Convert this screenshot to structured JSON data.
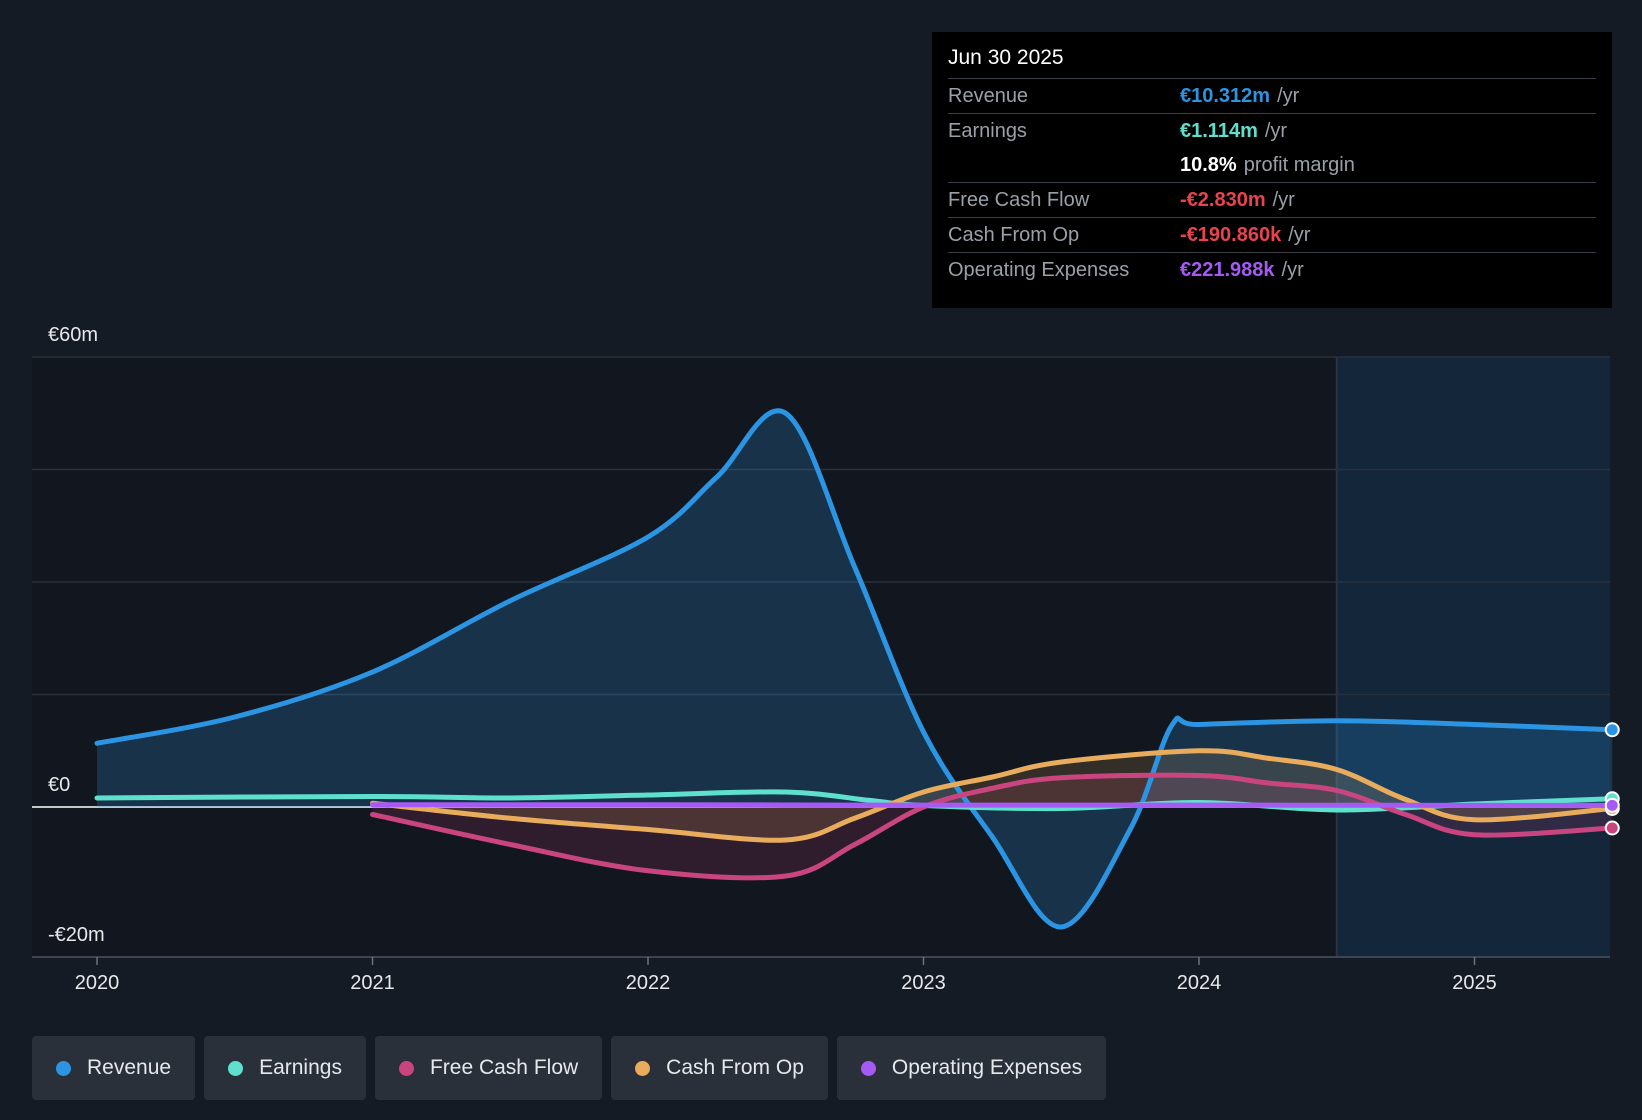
{
  "tooltip": {
    "date": "Jun 30 2025",
    "rows": [
      {
        "label": "Revenue",
        "value": "€10.312m",
        "unit": "/yr",
        "color": "#2b94e3"
      },
      {
        "label": "Earnings",
        "value": "€1.114m",
        "unit": "/yr",
        "color": "#5fe0cf"
      },
      {
        "label": "",
        "value": "10.8%",
        "unit": "profit margin",
        "color": "#ffffff"
      },
      {
        "label": "Free Cash Flow",
        "value": "-€2.830m",
        "unit": "/yr",
        "color": "#e9434e"
      },
      {
        "label": "Cash From Op",
        "value": "-€190.860k",
        "unit": "/yr",
        "color": "#e9434e"
      },
      {
        "label": "Operating Expenses",
        "value": "€221.988k",
        "unit": "/yr",
        "color": "#a55af4"
      }
    ]
  },
  "legend": [
    {
      "label": "Revenue",
      "color": "#2b94e3"
    },
    {
      "label": "Earnings",
      "color": "#5fe0cf"
    },
    {
      "label": "Free Cash Flow",
      "color": "#c8457f"
    },
    {
      "label": "Cash From Op",
      "color": "#e8ac5c"
    },
    {
      "label": "Operating Expenses",
      "color": "#a55af4"
    }
  ],
  "chart_data": {
    "type": "line",
    "ylim": [
      -20,
      60
    ],
    "y_tick_labels": [
      {
        "value": 60,
        "label": "€60m"
      },
      {
        "value": 0,
        "label": "€0"
      },
      {
        "value": -20,
        "label": "-€20m"
      }
    ],
    "x_ticks": [
      2020,
      2021,
      2022,
      2023,
      2024,
      2025
    ],
    "xlim": [
      2020,
      2025.5
    ],
    "forecast_start": 2024.5,
    "series": [
      {
        "name": "Revenue",
        "color": "#2b94e3",
        "fill": true,
        "x": [
          2020,
          2020.5,
          2021,
          2021.5,
          2022,
          2022.25,
          2022.5,
          2022.75,
          2023,
          2023.25,
          2023.5,
          2023.75,
          2023.9,
          2024,
          2024.5,
          2025,
          2025.5
        ],
        "y": [
          8.5,
          12,
          18,
          27.5,
          36,
          44,
          52.5,
          32,
          10,
          -4,
          -16,
          -3,
          10.8,
          11,
          11.5,
          11,
          10.3
        ]
      },
      {
        "name": "Earnings",
        "color": "#5fe0cf",
        "fill": false,
        "x": [
          2020,
          2021,
          2021.5,
          2022,
          2022.5,
          2022.8,
          2023,
          2023.5,
          2024,
          2024.5,
          2025,
          2025.5
        ],
        "y": [
          1.2,
          1.4,
          1.2,
          1.6,
          2.0,
          0.9,
          0.2,
          -0.2,
          0.6,
          -0.4,
          0.4,
          1.1
        ]
      },
      {
        "name": "Free Cash Flow",
        "color": "#c8457f",
        "fill": true,
        "x": [
          2021,
          2021.5,
          2022,
          2022.5,
          2022.75,
          2023,
          2023.25,
          2023.5,
          2024,
          2024.25,
          2024.5,
          2024.75,
          2025,
          2025.5
        ],
        "y": [
          -1,
          -5,
          -8.5,
          -9.2,
          -5,
          0,
          2.5,
          3.9,
          4.2,
          3.2,
          2.2,
          -1,
          -3.7,
          -2.8
        ]
      },
      {
        "name": "Cash From Op",
        "color": "#e8ac5c",
        "fill": true,
        "x": [
          2021,
          2021.5,
          2022,
          2022.5,
          2022.75,
          2023,
          2023.25,
          2023.5,
          2024,
          2024.25,
          2024.5,
          2024.75,
          2025,
          2025.5
        ],
        "y": [
          0.5,
          -1.5,
          -3,
          -4.4,
          -1.5,
          2,
          4,
          6,
          7.5,
          6.5,
          5,
          1,
          -1.7,
          -0.2
        ]
      },
      {
        "name": "Operating Expenses",
        "color": "#a55af4",
        "fill": false,
        "x": [
          2021,
          2022,
          2023,
          2024,
          2025,
          2025.5
        ],
        "y": [
          0.3,
          0.3,
          0.25,
          0.25,
          0.22,
          0.22
        ]
      }
    ]
  }
}
